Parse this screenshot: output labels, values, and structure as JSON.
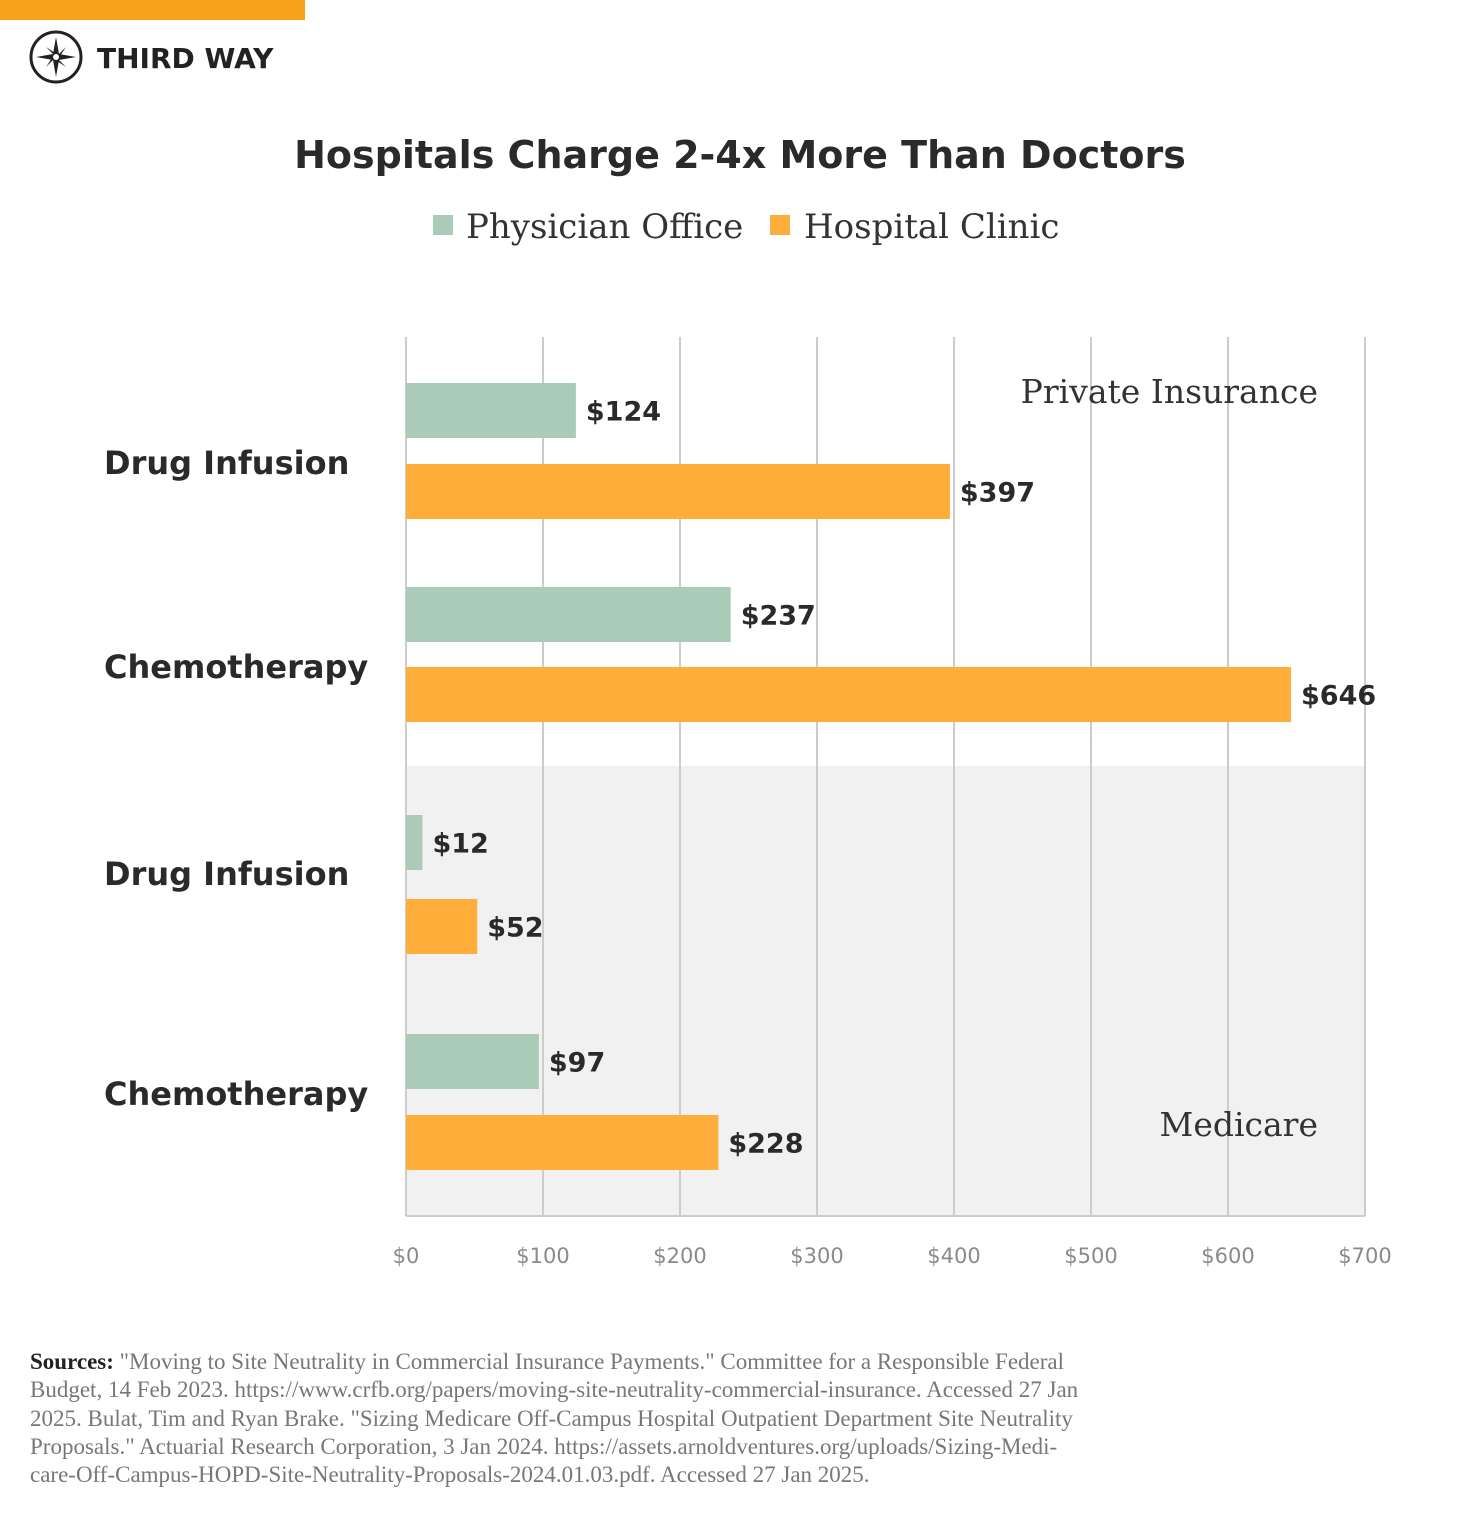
{
  "brand": {
    "name": "THIRD WAY",
    "accent": "#F9A11B"
  },
  "chart_data": {
    "type": "bar",
    "orientation": "horizontal",
    "title": "Hospitals Charge 2-4x More Than Doctors",
    "legend": {
      "placement": "top",
      "entries": [
        "Physician Office",
        "Hospital Clinic"
      ]
    },
    "colors": {
      "Physician Office": "#A9CBB7",
      "Hospital Clinic": "#FFAD3B",
      "medicare_band": "#F1F1F1",
      "grid": "#CCCCCC"
    },
    "xlim": [
      0,
      700
    ],
    "xticks": [
      0,
      100,
      200,
      300,
      400,
      500,
      600,
      700
    ],
    "xtick_labels": [
      "$0",
      "$100",
      "$200",
      "$300",
      "$400",
      "$500",
      "$600",
      "$700"
    ],
    "grid": true,
    "groups": [
      {
        "name": "Private Insurance",
        "categories": [
          "Drug Infusion",
          "Chemotherapy"
        ],
        "series": [
          {
            "name": "Physician Office",
            "values": [
              124,
              237
            ],
            "labels": [
              "$124",
              "$237"
            ]
          },
          {
            "name": "Hospital Clinic",
            "values": [
              397,
              646
            ],
            "labels": [
              "$397",
              "$646"
            ]
          }
        ]
      },
      {
        "name": "Medicare",
        "categories": [
          "Drug Infusion",
          "Chemotherapy"
        ],
        "series": [
          {
            "name": "Physician Office",
            "values": [
              12,
              97
            ],
            "labels": [
              "$12",
              "$97"
            ]
          },
          {
            "name": "Hospital Clinic",
            "values": [
              52,
              228
            ],
            "labels": [
              "$52",
              "$228"
            ]
          }
        ]
      }
    ]
  },
  "sources": {
    "label": "Sources:",
    "lines": [
      " \"Moving to Site Neutrality in Commercial Insurance Payments.\" Committee for a Responsible Federal",
      "Budget, 14 Feb 2023. https://www.crfb.org/papers/moving-site-neutrality-commercial-insurance. Accessed 27 Jan",
      "2025. Bulat, Tim and Ryan Brake. \"Sizing Medicare Off-Campus Hospital Outpatient Department Site Neutrality",
      "Proposals.\" Actuarial Research Corporation, 3 Jan 2024. https://assets.arnoldventures.org/uploads/Sizing-Medi-",
      "care-Off-Campus-HOPD-Site-Neutrality-Proposals-2024.01.03.pdf. Accessed 27 Jan 2025."
    ]
  }
}
